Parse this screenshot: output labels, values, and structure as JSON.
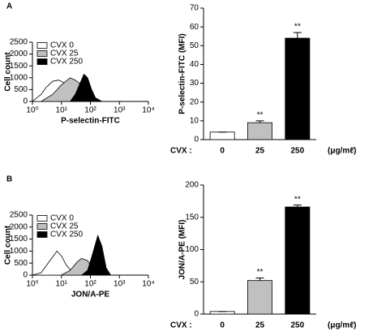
{
  "chart_data": [
    {
      "type": "histogram",
      "panel": "A",
      "ylabel": "Cell count",
      "xlabel": "P-selectin-FITC",
      "log_x": true,
      "xlim": [
        1,
        10000
      ],
      "xticks": [
        {
          "value": 1,
          "label": "10⁰"
        },
        {
          "value": 10,
          "label": "10¹"
        },
        {
          "value": 100,
          "label": "10²"
        },
        {
          "value": 1000,
          "label": "10³"
        },
        {
          "value": 10000,
          "label": "10⁴"
        }
      ],
      "ylim": [
        0,
        2500
      ],
      "yticks": [
        0,
        500,
        1000,
        1500,
        2000,
        2500
      ],
      "series": [
        {
          "name": "CVX 0",
          "color": "#ffffff",
          "x": [
            1,
            2,
            3,
            5,
            8,
            12,
            20,
            30,
            50
          ],
          "values": [
            0,
            300,
            600,
            850,
            900,
            800,
            400,
            150,
            0
          ]
        },
        {
          "name": "CVX 25",
          "color": "#c0c0c0",
          "x": [
            2,
            5,
            10,
            20,
            30,
            50,
            80,
            120
          ],
          "values": [
            0,
            300,
            700,
            1000,
            900,
            700,
            300,
            0
          ]
        },
        {
          "name": "CVX 250",
          "color": "#000000",
          "x": [
            20,
            30,
            45,
            60,
            80,
            110,
            150,
            250
          ],
          "values": [
            0,
            300,
            800,
            1150,
            1000,
            500,
            150,
            0
          ]
        }
      ]
    },
    {
      "type": "bar",
      "ylabel": "P-selectin-FITC (MFI)",
      "x_prefix": "CVX :",
      "x_unit": "(μg/mℓ)",
      "categories": [
        "0",
        "25",
        "250"
      ],
      "values": [
        4,
        9,
        54
      ],
      "errors": [
        0,
        1,
        3
      ],
      "significance": [
        null,
        "**",
        "**"
      ],
      "colors": [
        "#ffffff",
        "#c0c0c0",
        "#000000"
      ],
      "ylim": [
        0,
        70
      ],
      "yticks": [
        0,
        10,
        20,
        30,
        40,
        50,
        60,
        70
      ]
    },
    {
      "type": "histogram",
      "panel": "B",
      "ylabel": "Cell count",
      "xlabel": "JON/A-PE",
      "log_x": true,
      "xlim": [
        1,
        10000
      ],
      "xticks": [
        {
          "value": 1,
          "label": "10⁰"
        },
        {
          "value": 10,
          "label": "10¹"
        },
        {
          "value": 100,
          "label": "10²"
        },
        {
          "value": 1000,
          "label": "10³"
        },
        {
          "value": 10000,
          "label": "10⁴"
        }
      ],
      "ylim": [
        0,
        2500
      ],
      "yticks": [
        0,
        500,
        1000,
        1500,
        2000,
        2500
      ],
      "series": [
        {
          "name": "CVX 0",
          "color": "#ffffff",
          "x": [
            1,
            2,
            4,
            7,
            10,
            15,
            25,
            40
          ],
          "values": [
            0,
            100,
            600,
            1000,
            800,
            400,
            100,
            0
          ]
        },
        {
          "name": "CVX 25",
          "color": "#c0c0c0",
          "x": [
            10,
            20,
            35,
            50,
            80,
            120,
            200
          ],
          "values": [
            0,
            200,
            550,
            700,
            600,
            300,
            0
          ]
        },
        {
          "name": "CVX 250",
          "color": "#000000",
          "x": [
            50,
            80,
            120,
            180,
            250,
            350,
            500
          ],
          "values": [
            0,
            200,
            900,
            1650,
            1200,
            300,
            0
          ]
        }
      ]
    },
    {
      "type": "bar",
      "ylabel": "JON/A-PE (MFI)",
      "x_prefix": "CVX :",
      "x_unit": "(μg/mℓ)",
      "categories": [
        "0",
        "25",
        "250"
      ],
      "values": [
        4,
        52,
        166
      ],
      "errors": [
        0,
        4,
        3
      ],
      "significance": [
        null,
        "**",
        "**"
      ],
      "colors": [
        "#ffffff",
        "#c0c0c0",
        "#000000"
      ],
      "ylim": [
        0,
        200
      ],
      "yticks": [
        0,
        50,
        100,
        150,
        200
      ]
    }
  ]
}
